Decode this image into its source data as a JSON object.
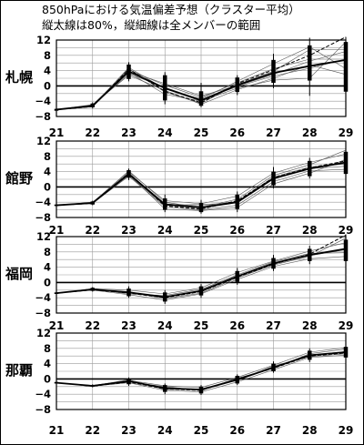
{
  "title_line1": "850hPaにおける気温偏差予想（クラスター平均）",
  "title_line2": "縦太線は80%，縦細線は全メンバーの範囲",
  "chart_data": [
    {
      "type": "line",
      "name": "札幌",
      "x": [
        "21",
        "22",
        "23",
        "24",
        "25",
        "26",
        "27",
        "28",
        "29"
      ],
      "ylim": [
        -8,
        12
      ],
      "yticks": [
        "12",
        "8",
        "4",
        "0",
        "−4",
        "−8"
      ],
      "series": [
        {
          "values": [
            -6.2,
            -5.0,
            4.2,
            0.2,
            -3.0,
            0.8,
            4.5,
            7.0,
            7.0
          ]
        },
        {
          "values": [
            -6.2,
            -5.2,
            3.2,
            -0.4,
            -3.6,
            -0.2,
            2.6,
            4.6,
            7.0
          ]
        },
        {
          "values": [
            -6.2,
            -5.4,
            4.5,
            -1.6,
            -4.6,
            0.4,
            3.8,
            9.5,
            9.5
          ]
        },
        {
          "values": [
            -6.2,
            -5.1,
            3.5,
            -2.2,
            -4.0,
            -0.6,
            1.5,
            2.0,
            11.5
          ]
        },
        {
          "values": [
            -6.2,
            -5.3,
            4.8,
            -0.8,
            -3.4,
            1.2,
            5.8,
            10.2,
            4.5
          ]
        },
        {
          "values": [
            -6.2,
            -4.9,
            2.8,
            -1.2,
            -4.8,
            -1.0,
            2.0,
            5.5,
            3.0
          ]
        },
        {
          "values": [
            -6.2,
            -5.5,
            3.8,
            0.6,
            -2.6,
            0.0,
            3.0,
            6.5,
            9.0
          ]
        }
      ],
      "mean": {
        "values": [
          -6.2,
          -5.2,
          3.8,
          -0.6,
          -3.8,
          0.2,
          3.4,
          5.2,
          6.8
        ]
      },
      "dashed": {
        "values": [
          -6.2,
          -5.4,
          4.4,
          -1.4,
          -4.4,
          0.6,
          4.2,
          8.0,
          12.8
        ]
      },
      "range80": [
        [
          -6.5,
          -6.0
        ],
        [
          -5.6,
          -4.6
        ],
        [
          1.8,
          5.6
        ],
        [
          -3.8,
          2.8
        ],
        [
          -5.2,
          -1.4
        ],
        [
          -1.6,
          2.2
        ],
        [
          0.8,
          6.8
        ],
        [
          1.4,
          10.6
        ],
        [
          -1.5,
          11.5
        ]
      ],
      "rangeAll": [
        [
          -6.6,
          -5.8
        ],
        [
          -5.9,
          -4.3
        ],
        [
          1.2,
          6.2
        ],
        [
          -4.8,
          3.6
        ],
        [
          -5.6,
          0.8
        ],
        [
          -2.4,
          2.8
        ],
        [
          -0.6,
          8.4
        ],
        [
          -2.6,
          12.6
        ],
        [
          -4.2,
          12.8
        ]
      ]
    },
    {
      "type": "line",
      "name": "館野",
      "x": [
        "21",
        "22",
        "23",
        "24",
        "25",
        "26",
        "27",
        "28",
        "29"
      ],
      "ylim": [
        -8,
        12
      ],
      "yticks": [
        "12",
        "8",
        "4",
        "0",
        "−4",
        "−8"
      ],
      "series": [
        {
          "values": [
            -4.8,
            -4.2,
            3.6,
            -4.4,
            -5.0,
            -3.8,
            2.6,
            5.2,
            6.0
          ]
        },
        {
          "values": [
            -4.8,
            -4.3,
            2.8,
            -5.2,
            -6.0,
            -4.8,
            1.4,
            4.2,
            4.6
          ]
        },
        {
          "values": [
            -4.8,
            -4.0,
            3.9,
            -3.6,
            -4.4,
            -2.4,
            3.6,
            6.4,
            8.6
          ]
        },
        {
          "values": [
            -4.8,
            -4.4,
            3.2,
            -5.8,
            -6.2,
            -5.4,
            0.8,
            3.6,
            7.2
          ]
        },
        {
          "values": [
            -4.8,
            -4.1,
            4.2,
            -4.0,
            -5.4,
            -3.2,
            3.0,
            5.8,
            9.6
          ]
        },
        {
          "values": [
            -4.8,
            -4.2,
            3.0,
            -4.8,
            -4.6,
            -4.2,
            2.2,
            4.8,
            5.4
          ]
        }
      ],
      "mean": {
        "values": [
          -4.8,
          -4.2,
          3.4,
          -4.6,
          -5.4,
          -4.0,
          2.2,
          4.8,
          6.4
        ]
      },
      "dashed": {
        "values": [
          -4.8,
          -4.3,
          3.6,
          -5.0,
          -5.8,
          -3.6,
          2.4,
          5.0,
          6.8
        ]
      },
      "range80": [
        [
          -5.0,
          -4.6
        ],
        [
          -4.6,
          -3.8
        ],
        [
          2.4,
          4.4
        ],
        [
          -6.0,
          -3.0
        ],
        [
          -6.6,
          -4.2
        ],
        [
          -5.8,
          -2.0
        ],
        [
          0.4,
          4.0
        ],
        [
          2.8,
          6.8
        ],
        [
          3.4,
          9.2
        ]
      ],
      "rangeAll": [
        [
          -5.2,
          -4.4
        ],
        [
          -4.8,
          -3.6
        ],
        [
          1.8,
          4.8
        ],
        [
          -6.6,
          -2.0
        ],
        [
          -7.0,
          -3.4
        ],
        [
          -6.6,
          -1.2
        ],
        [
          -0.4,
          5.2
        ],
        [
          2.2,
          7.6
        ],
        [
          1.6,
          11.6
        ]
      ]
    },
    {
      "type": "line",
      "name": "福岡",
      "x": [
        "21",
        "22",
        "23",
        "24",
        "25",
        "26",
        "27",
        "28",
        "29"
      ],
      "ylim": [
        -8,
        12
      ],
      "yticks": [
        "12",
        "8",
        "4",
        "0",
        "−4",
        "−8"
      ],
      "series": [
        {
          "values": [
            -2.8,
            -1.8,
            -2.6,
            -3.8,
            -2.2,
            1.6,
            5.0,
            7.0,
            8.6
          ]
        },
        {
          "values": [
            -2.8,
            -1.6,
            -2.0,
            -3.0,
            -1.4,
            2.6,
            5.6,
            8.2,
            10.4
          ]
        },
        {
          "values": [
            -2.8,
            -2.0,
            -3.2,
            -4.6,
            -3.0,
            0.8,
            4.2,
            6.2,
            6.8
          ]
        },
        {
          "values": [
            -2.8,
            -1.9,
            -2.4,
            -4.2,
            -2.8,
            1.2,
            4.6,
            6.8,
            11.6
          ]
        },
        {
          "values": [
            -2.8,
            -1.7,
            -3.0,
            -3.4,
            -1.8,
            2.0,
            5.4,
            7.6,
            7.8
          ]
        }
      ],
      "mean": {
        "values": [
          -2.8,
          -1.8,
          -2.6,
          -3.8,
          -2.2,
          1.6,
          5.0,
          7.2,
          8.8
        ]
      },
      "dashed": {
        "values": [
          -2.8,
          -1.9,
          -2.8,
          -4.0,
          -2.4,
          1.4,
          4.8,
          7.4,
          12.4
        ]
      },
      "range80": [
        [
          -3.0,
          -2.6
        ],
        [
          -2.2,
          -1.4
        ],
        [
          -3.6,
          -1.6
        ],
        [
          -5.0,
          -2.6
        ],
        [
          -3.4,
          -1.0
        ],
        [
          0.2,
          3.0
        ],
        [
          3.6,
          6.4
        ],
        [
          5.6,
          8.8
        ],
        [
          5.6,
          11.2
        ]
      ],
      "rangeAll": [
        [
          -3.2,
          -2.4
        ],
        [
          -2.4,
          -1.2
        ],
        [
          -4.0,
          -1.0
        ],
        [
          -5.6,
          -2.0
        ],
        [
          -4.0,
          -0.4
        ],
        [
          -0.6,
          3.8
        ],
        [
          3.0,
          7.2
        ],
        [
          4.8,
          9.6
        ],
        [
          4.6,
          12.6
        ]
      ]
    },
    {
      "type": "line",
      "name": "那覇",
      "x": [
        "21",
        "22",
        "23",
        "24",
        "25",
        "26",
        "27",
        "28",
        "29"
      ],
      "ylim": [
        -8,
        12
      ],
      "yticks": [
        "12",
        "8",
        "4",
        "0",
        "−4",
        "−8"
      ],
      "series": [
        {
          "values": [
            -1.0,
            -1.8,
            -0.6,
            -2.4,
            -2.8,
            -0.2,
            3.0,
            6.2,
            7.2
          ]
        },
        {
          "values": [
            -1.0,
            -1.7,
            -0.4,
            -1.8,
            -2.2,
            0.4,
            3.6,
            7.0,
            8.2
          ]
        },
        {
          "values": [
            -1.0,
            -1.9,
            -1.0,
            -3.0,
            -3.4,
            -0.8,
            2.4,
            5.6,
            6.2
          ]
        },
        {
          "values": [
            -1.0,
            -1.8,
            -0.8,
            -2.0,
            -3.0,
            0.2,
            2.8,
            6.6,
            7.8
          ]
        },
        {
          "values": [
            -1.0,
            -1.8,
            -0.2,
            -2.8,
            -2.6,
            -0.4,
            3.4,
            5.8,
            6.6
          ]
        }
      ],
      "mean": {
        "values": [
          -1.0,
          -1.8,
          -0.6,
          -2.4,
          -2.8,
          -0.2,
          3.0,
          6.2,
          7.0
        ]
      },
      "dashed": {
        "values": [
          -1.0,
          -1.9,
          -0.8,
          -2.6,
          -3.0,
          0.0,
          2.8,
          6.0,
          6.8
        ]
      },
      "range80": [
        [
          -1.2,
          -0.8
        ],
        [
          -2.0,
          -1.6
        ],
        [
          -1.4,
          0.0
        ],
        [
          -3.4,
          -1.6
        ],
        [
          -3.8,
          -2.0
        ],
        [
          -1.2,
          0.8
        ],
        [
          2.0,
          4.0
        ],
        [
          5.0,
          7.4
        ],
        [
          5.6,
          8.4
        ]
      ],
      "rangeAll": [
        [
          -1.3,
          -0.7
        ],
        [
          -2.2,
          -1.4
        ],
        [
          -1.8,
          0.4
        ],
        [
          -4.0,
          -1.2
        ],
        [
          -4.2,
          -1.6
        ],
        [
          -1.6,
          1.2
        ],
        [
          1.6,
          4.6
        ],
        [
          4.4,
          8.0
        ],
        [
          5.0,
          9.0
        ]
      ]
    }
  ]
}
